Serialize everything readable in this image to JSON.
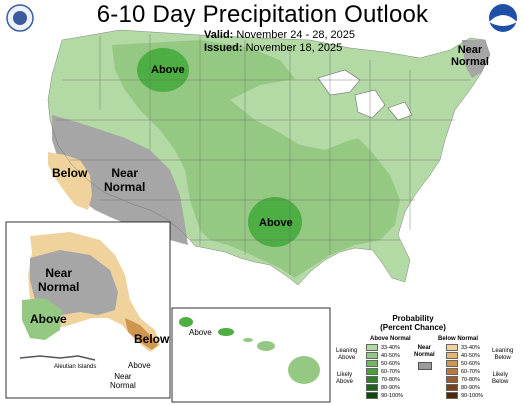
{
  "title": "6-10 Day Precipitation Outlook",
  "valid_label": "Valid:",
  "valid_dates": "November 24 - 28, 2025",
  "issued_label": "Issued:",
  "issued_date": "November 18, 2025",
  "logos": {
    "left": "doc-seal-logo",
    "right": "noaa-logo"
  },
  "map_labels": {
    "above_north": "Above",
    "above_south": "Above",
    "near_normal_west": "Near\nNormal",
    "near_normal_ne": "Near\nNormal",
    "below_ca": "Below"
  },
  "alaska": {
    "near_normal": "Near\nNormal",
    "above": "Above",
    "below": "Below",
    "aleutian": "Aleutian Islands",
    "near_normal_aleutian": "Near\nNormal",
    "above_aleutian": "Above"
  },
  "hawaii": {
    "above": "Above"
  },
  "legend": {
    "title": "Probability\n(Percent Chance)",
    "above_header": "Above Normal",
    "below_header": "Below Normal",
    "near_header": "Near\nNormal",
    "leaning_above": "Leaning\nAbove",
    "likely_above": "Likely\nAbove",
    "leaning_below": "Leaning\nBelow",
    "likely_below": "Likely\nBelow",
    "ranges": [
      "33-40%",
      "40-50%",
      "50-60%",
      "60-70%",
      "70-80%",
      "80-90%",
      "90-100%"
    ],
    "above_colors": [
      "#b3d9a4",
      "#95c983",
      "#6fb85f",
      "#4a9e3c",
      "#2f8128",
      "#1c6418",
      "#0d4a0c"
    ],
    "below_colors": [
      "#f0d29c",
      "#e3b674",
      "#cf9650",
      "#b97a3e",
      "#9c5b2a",
      "#7a3f1a",
      "#52260c"
    ],
    "near_color": "#9a9a9a"
  },
  "colors": {
    "above_33_40": "#b3d9a4",
    "above_40_50": "#95c983",
    "above_50_60": "#4cae43",
    "near_normal": "#a6a6a6",
    "below_33_40": "#f0d29c",
    "below_40_50": "#e3b674",
    "water": "#ffffff",
    "border": "#6b6b6b"
  }
}
